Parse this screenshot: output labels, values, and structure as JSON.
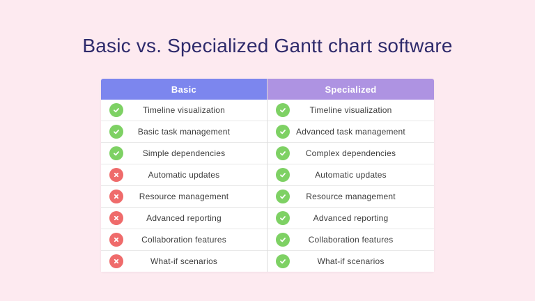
{
  "page": {
    "title": "Basic vs. Specialized Gantt chart software"
  },
  "colors": {
    "background": "#fdeaf0",
    "title_text": "#2e2a6b",
    "header_basic": "#7c86ee",
    "header_specialized": "#ae93e2",
    "check_icon": "#7ed164",
    "cross_icon": "#ef6b6b",
    "row_text": "#3d3d3d"
  },
  "table": {
    "headers": [
      {
        "label": "Basic"
      },
      {
        "label": "Specialized"
      }
    ],
    "rows": [
      {
        "basic": {
          "status": "check",
          "label": "Timeline visualization"
        },
        "specialized": {
          "status": "check",
          "label": "Timeline visualization"
        }
      },
      {
        "basic": {
          "status": "check",
          "label": "Basic task management"
        },
        "specialized": {
          "status": "check",
          "label": "Advanced task management"
        }
      },
      {
        "basic": {
          "status": "check",
          "label": "Simple dependencies"
        },
        "specialized": {
          "status": "check",
          "label": "Complex dependencies"
        }
      },
      {
        "basic": {
          "status": "cross",
          "label": "Automatic updates"
        },
        "specialized": {
          "status": "check",
          "label": "Automatic updates"
        }
      },
      {
        "basic": {
          "status": "cross",
          "label": "Resource management"
        },
        "specialized": {
          "status": "check",
          "label": "Resource management"
        }
      },
      {
        "basic": {
          "status": "cross",
          "label": "Advanced reporting"
        },
        "specialized": {
          "status": "check",
          "label": "Advanced reporting"
        }
      },
      {
        "basic": {
          "status": "cross",
          "label": "Collaboration features"
        },
        "specialized": {
          "status": "check",
          "label": "Collaboration features"
        }
      },
      {
        "basic": {
          "status": "cross",
          "label": "What-if scenarios"
        },
        "specialized": {
          "status": "check",
          "label": "What-if scenarios"
        }
      }
    ]
  }
}
